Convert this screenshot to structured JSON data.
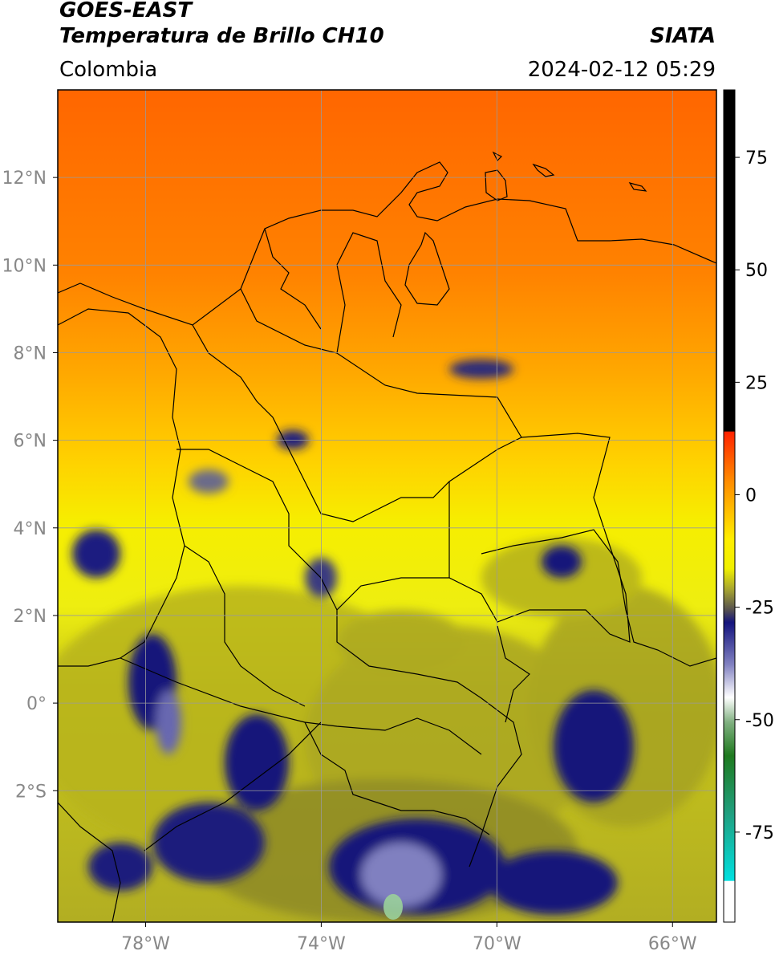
{
  "header": {
    "satellite": "GOES-EAST",
    "product": "Temperatura de Brillo CH10",
    "region": "Colombia",
    "source": "SIATA",
    "datetime": "2024-02-12 05:29"
  },
  "map": {
    "lon_range": [
      -80,
      -65
    ],
    "lat_range": [
      -5,
      14
    ],
    "lon_ticks": [
      {
        "value": -78,
        "label": "78°W"
      },
      {
        "value": -74,
        "label": "74°W"
      },
      {
        "value": -70,
        "label": "70°W"
      },
      {
        "value": -66,
        "label": "66°W"
      }
    ],
    "lat_ticks": [
      {
        "value": 12,
        "label": "12°N"
      },
      {
        "value": 10,
        "label": "10°N"
      },
      {
        "value": 8,
        "label": "8°N"
      },
      {
        "value": 6,
        "label": "6°N"
      },
      {
        "value": 4,
        "label": "4°N"
      },
      {
        "value": 2,
        "label": "2°N"
      },
      {
        "value": 0,
        "label": "0°"
      },
      {
        "value": -2,
        "label": "2°S"
      }
    ],
    "grid": true
  },
  "colorbar": {
    "range": [
      -95,
      90
    ],
    "ticks": [
      {
        "value": 75,
        "label": "75"
      },
      {
        "value": 50,
        "label": "50"
      },
      {
        "value": 25,
        "label": "25"
      },
      {
        "value": 0,
        "label": "0"
      },
      {
        "value": -25,
        "label": "-25"
      },
      {
        "value": -50,
        "label": "-50"
      },
      {
        "value": -75,
        "label": "-75"
      }
    ]
  },
  "colors": {
    "warm": "#ff6a00",
    "mid": "#ffa500",
    "yellow": "#f5f000",
    "olive": "#b5b41d",
    "navy": "#14147a",
    "grid": "#9a9a9a",
    "tick_label": "#888888"
  }
}
